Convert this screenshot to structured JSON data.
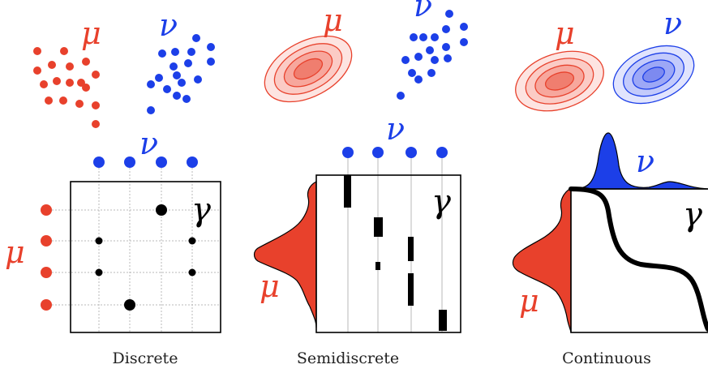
{
  "symbols": {
    "mu": "μ",
    "nu": "ν",
    "gamma": "γ"
  },
  "captions": {
    "discrete": "Discrete",
    "semidiscrete": "Semidiscrete",
    "continuous": "Continuous"
  },
  "colors": {
    "red": "#e8412c",
    "blue": "#1c3fe8",
    "black": "#000000",
    "grid": "#b8b8b8"
  }
}
